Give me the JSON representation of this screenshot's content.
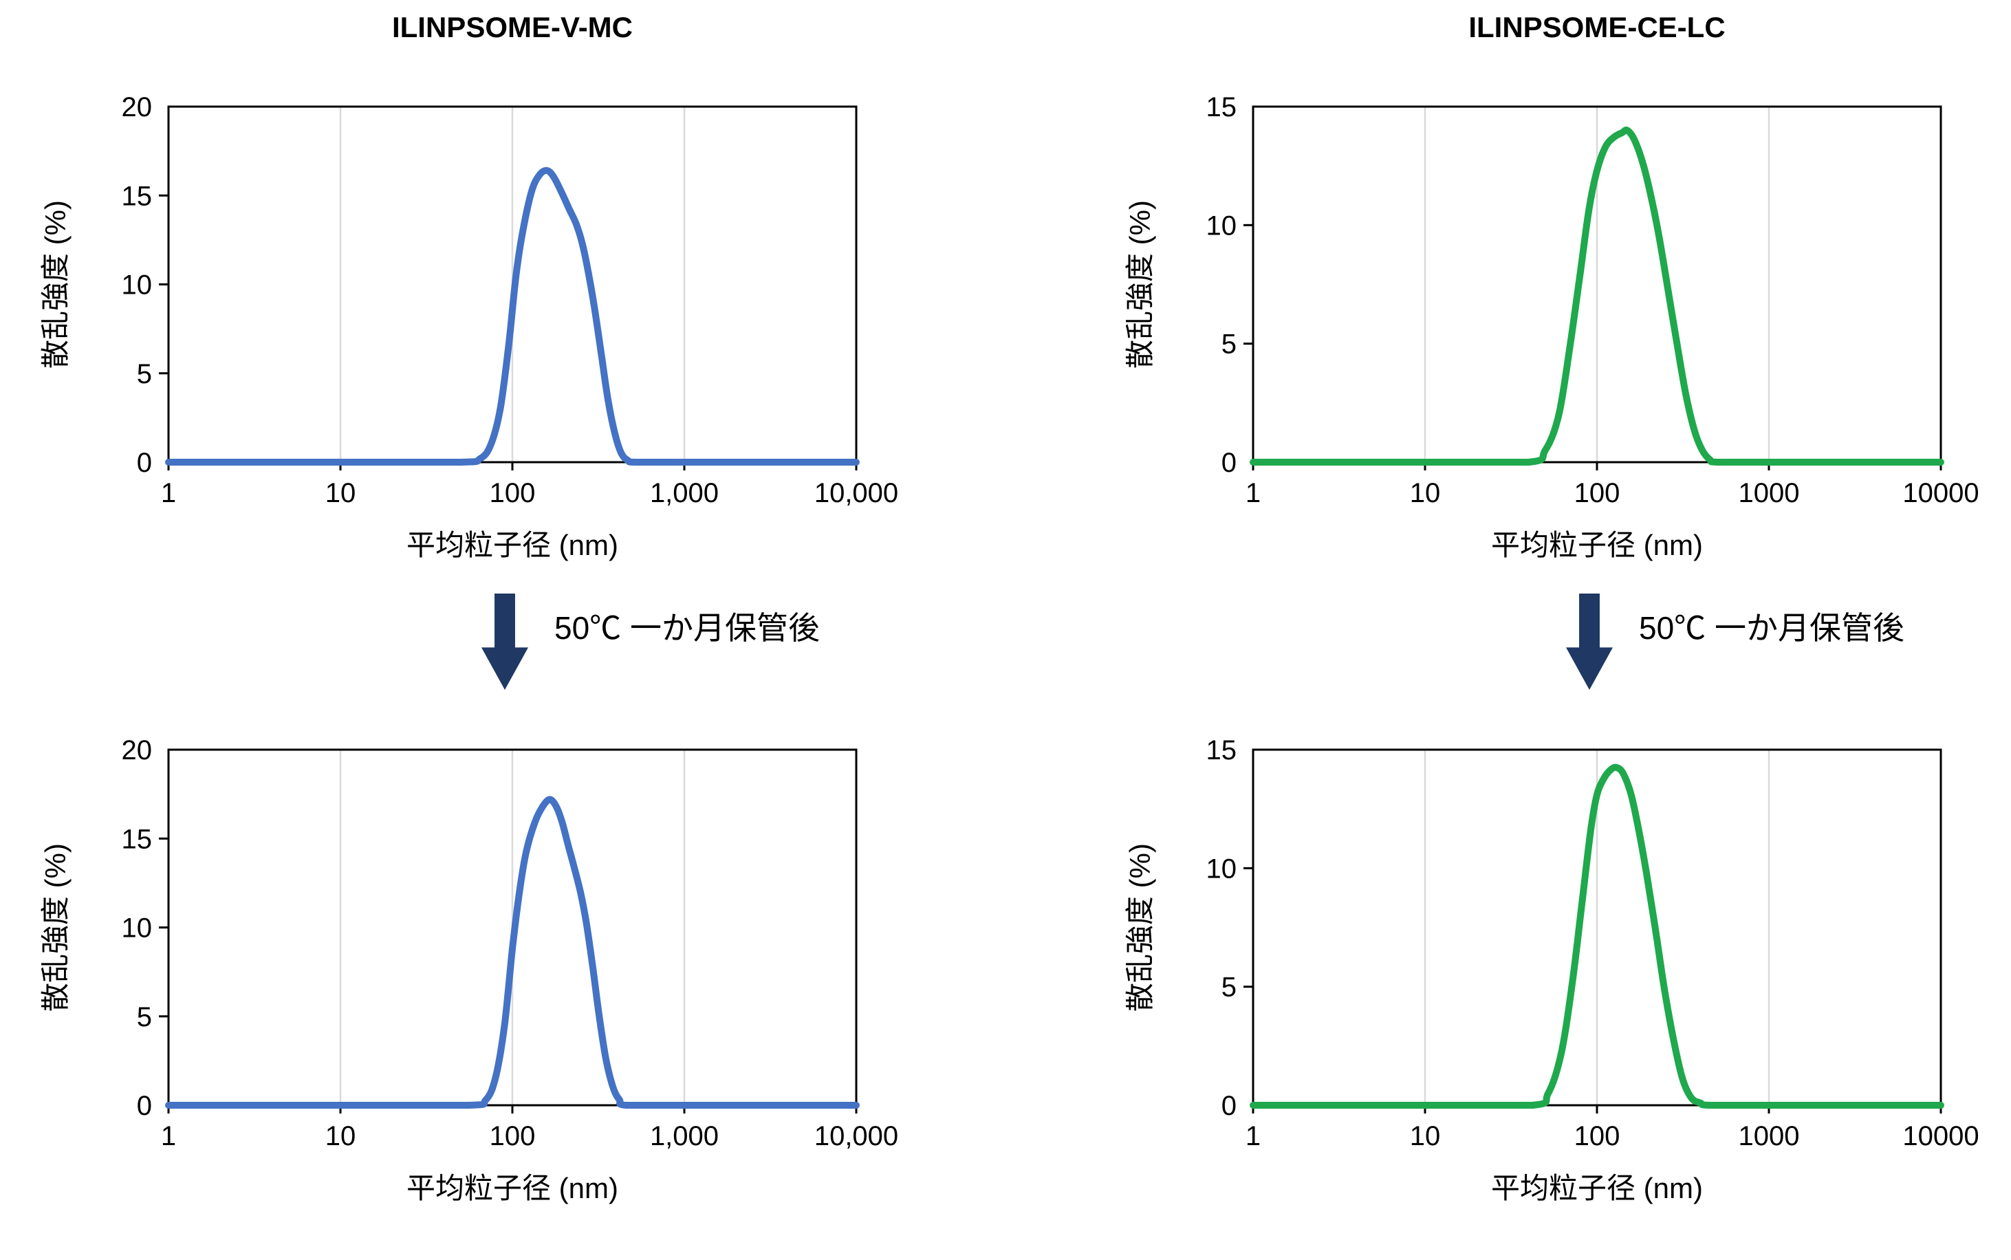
{
  "page": {
    "background": "#FFFFFF"
  },
  "arrow": {
    "label": "50℃ 一か月保管後",
    "color": "#1F3864"
  },
  "style": {
    "axis_color": "#000000",
    "grid_color": "#D9D9D9",
    "blue": "#4472C4",
    "green": "#1FA84C"
  },
  "chart_data": [
    {
      "id": "ilinpsome-v-mc-before",
      "type": "line",
      "title": "ILINPSOME-V-MC",
      "xlabel": "平均粒子径 (nm)",
      "ylabel": "散乱強度 (%)",
      "x_scale": "log",
      "xlim": [
        1,
        10000
      ],
      "ylim": [
        0,
        20
      ],
      "yticks": [
        0,
        5,
        10,
        15,
        20
      ],
      "xticks": [
        1,
        10,
        100,
        1000,
        10000
      ],
      "xtick_labels": [
        "1",
        "10",
        "100",
        "1,000",
        "10,000"
      ],
      "grid": "vertical-decades",
      "legend": "none",
      "line_color": "#4472C4",
      "peak": {
        "x_nm": 150,
        "y_pct": 16.4
      },
      "points": [
        [
          1,
          0
        ],
        [
          10,
          0
        ],
        [
          50,
          0
        ],
        [
          65,
          0.2
        ],
        [
          75,
          1
        ],
        [
          85,
          3
        ],
        [
          95,
          6.5
        ],
        [
          105,
          10.5
        ],
        [
          115,
          13
        ],
        [
          130,
          15.3
        ],
        [
          145,
          16.2
        ],
        [
          160,
          16.4
        ],
        [
          175,
          16
        ],
        [
          195,
          15.1
        ],
        [
          215,
          14.2
        ],
        [
          235,
          13.4
        ],
        [
          255,
          12.3
        ],
        [
          275,
          10.8
        ],
        [
          300,
          8.7
        ],
        [
          330,
          6
        ],
        [
          360,
          3.5
        ],
        [
          395,
          1.6
        ],
        [
          430,
          0.5
        ],
        [
          470,
          0.1
        ],
        [
          520,
          0
        ],
        [
          1000,
          0
        ],
        [
          10000,
          0
        ]
      ]
    },
    {
      "id": "ilinpsome-v-mc-after-storage",
      "type": "line",
      "title": "",
      "xlabel": "平均粒子径 (nm)",
      "ylabel": "散乱強度 (%)",
      "x_scale": "log",
      "xlim": [
        1,
        10000
      ],
      "ylim": [
        0,
        20
      ],
      "yticks": [
        0,
        5,
        10,
        15,
        20
      ],
      "xticks": [
        1,
        10,
        100,
        1000,
        10000
      ],
      "xtick_labels": [
        "1",
        "10",
        "100",
        "1,000",
        "10,000"
      ],
      "grid": "vertical-decades",
      "legend": "none",
      "line_color": "#4472C4",
      "peak": {
        "x_nm": 160,
        "y_pct": 17.2
      },
      "points": [
        [
          1,
          0
        ],
        [
          10,
          0
        ],
        [
          55,
          0
        ],
        [
          70,
          0.3
        ],
        [
          80,
          1.6
        ],
        [
          90,
          4.5
        ],
        [
          100,
          8.8
        ],
        [
          110,
          12
        ],
        [
          120,
          14.2
        ],
        [
          135,
          15.9
        ],
        [
          150,
          16.8
        ],
        [
          165,
          17.2
        ],
        [
          180,
          16.8
        ],
        [
          195,
          15.9
        ],
        [
          210,
          14.7
        ],
        [
          230,
          13.3
        ],
        [
          250,
          11.9
        ],
        [
          270,
          10.2
        ],
        [
          295,
          7.6
        ],
        [
          320,
          5
        ],
        [
          350,
          2.6
        ],
        [
          385,
          1
        ],
        [
          420,
          0.3
        ],
        [
          460,
          0
        ],
        [
          1000,
          0
        ],
        [
          10000,
          0
        ]
      ]
    },
    {
      "id": "ilinpsome-ce-lc-before",
      "type": "line",
      "title": "ILINPSOME-CE-LC",
      "xlabel": "平均粒子径 (nm)",
      "ylabel": "散乱強度 (%)",
      "x_scale": "log",
      "xlim": [
        1,
        10000
      ],
      "ylim": [
        0,
        15
      ],
      "yticks": [
        0,
        5,
        10,
        15
      ],
      "xticks": [
        1,
        10,
        100,
        1000,
        10000
      ],
      "xtick_labels": [
        "1",
        "10",
        "100",
        "1000",
        "10000"
      ],
      "grid": "vertical-decades",
      "legend": "none",
      "line_color": "#1FA84C",
      "peak": {
        "x_nm": 145,
        "y_pct": 14.0
      },
      "points": [
        [
          1,
          0
        ],
        [
          10,
          0
        ],
        [
          40,
          0
        ],
        [
          50,
          0.5
        ],
        [
          60,
          2
        ],
        [
          70,
          5
        ],
        [
          80,
          8
        ],
        [
          90,
          10.7
        ],
        [
          100,
          12.3
        ],
        [
          112,
          13.3
        ],
        [
          125,
          13.7
        ],
        [
          140,
          13.9
        ],
        [
          150,
          14
        ],
        [
          165,
          13.6
        ],
        [
          185,
          12.6
        ],
        [
          205,
          11.3
        ],
        [
          230,
          9.5
        ],
        [
          260,
          7.2
        ],
        [
          295,
          4.8
        ],
        [
          330,
          2.8
        ],
        [
          370,
          1.3
        ],
        [
          410,
          0.5
        ],
        [
          455,
          0.1
        ],
        [
          500,
          0
        ],
        [
          1000,
          0
        ],
        [
          10000,
          0
        ]
      ]
    },
    {
      "id": "ilinpsome-ce-lc-after-storage",
      "type": "line",
      "title": "",
      "xlabel": "平均粒子径 (nm)",
      "ylabel": "散乱強度 (%)",
      "x_scale": "log",
      "xlim": [
        1,
        10000
      ],
      "ylim": [
        0,
        15
      ],
      "yticks": [
        0,
        5,
        10,
        15
      ],
      "xticks": [
        1,
        10,
        100,
        1000,
        10000
      ],
      "xtick_labels": [
        "1",
        "10",
        "100",
        "1000",
        "10000"
      ],
      "grid": "vertical-decades",
      "legend": "none",
      "line_color": "#1FA84C",
      "peak": {
        "x_nm": 125,
        "y_pct": 14.25
      },
      "points": [
        [
          1,
          0
        ],
        [
          10,
          0
        ],
        [
          42,
          0
        ],
        [
          52,
          0.5
        ],
        [
          62,
          2.2
        ],
        [
          72,
          5.2
        ],
        [
          82,
          8.6
        ],
        [
          92,
          11.6
        ],
        [
          100,
          13.1
        ],
        [
          110,
          13.8
        ],
        [
          120,
          14.15
        ],
        [
          130,
          14.25
        ],
        [
          142,
          14
        ],
        [
          158,
          13.1
        ],
        [
          175,
          11.6
        ],
        [
          195,
          9.7
        ],
        [
          220,
          7.3
        ],
        [
          248,
          4.8
        ],
        [
          280,
          2.7
        ],
        [
          315,
          1.1
        ],
        [
          355,
          0.3
        ],
        [
          400,
          0.1
        ],
        [
          450,
          0
        ],
        [
          1000,
          0
        ],
        [
          10000,
          0
        ]
      ]
    }
  ]
}
